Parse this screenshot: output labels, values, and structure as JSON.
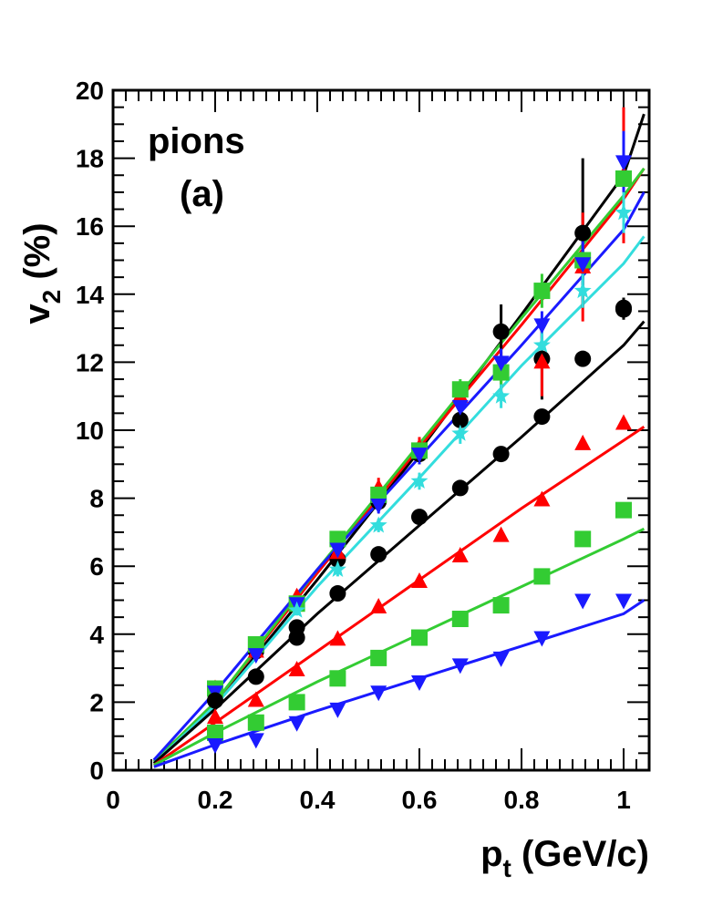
{
  "chart_data": {
    "type": "scatter",
    "title": "",
    "annotation": {
      "line1": "pions",
      "line2": "(a)"
    },
    "xlabel": {
      "main": "p",
      "sub": "t",
      "rest": " (GeV/c)"
    },
    "ylabel": {
      "main": "v",
      "sub": "2",
      "rest": " (%)"
    },
    "xlim": [
      0,
      1.05
    ],
    "ylim": [
      0,
      20
    ],
    "x_ticks": [
      0,
      0.2,
      0.4,
      0.6,
      0.8,
      1
    ],
    "x_tick_labels": [
      "0",
      "0.2",
      "0.4",
      "0.6",
      "0.8",
      "1"
    ],
    "y_ticks": [
      0,
      2,
      4,
      6,
      8,
      10,
      12,
      14,
      16,
      18,
      20
    ],
    "y_tick_labels": [
      "0",
      "2",
      "4",
      "6",
      "8",
      "10",
      "12",
      "14",
      "16",
      "18",
      "20"
    ],
    "grid": false,
    "series": [
      {
        "marker": "circle",
        "color": "#000000",
        "x": [
          0.2,
          0.28,
          0.36,
          0.44,
          0.52,
          0.6,
          0.68,
          0.76,
          0.84,
          0.92,
          1.0
        ],
        "y": [
          2.4,
          3.5,
          4.2,
          6.2,
          7.9,
          9.3,
          10.3,
          12.9,
          12.1,
          15.8,
          13.6
        ],
        "err": [
          0.2,
          0.15,
          0.2,
          0.2,
          0.25,
          0.3,
          0.3,
          0.8,
          1.2,
          2.2,
          0.3
        ],
        "fit": [
          [
            0.08,
            0.3
          ],
          [
            0.2,
            1.9
          ],
          [
            0.4,
            5.6
          ],
          [
            0.6,
            9.4
          ],
          [
            0.8,
            13.4
          ],
          [
            1.0,
            17.5
          ],
          [
            1.04,
            19.3
          ]
        ]
      },
      {
        "marker": "triangle-up",
        "color": "#ff0000",
        "x": [
          0.2,
          0.28,
          0.36,
          0.44,
          0.52,
          0.6,
          0.68,
          0.76,
          0.84,
          0.92,
          1.0
        ],
        "y": [
          2.4,
          3.5,
          5.1,
          6.4,
          8.3,
          9.5,
          11.0,
          11.7,
          12.0,
          14.8,
          17.5
        ],
        "err": [
          0.2,
          0.2,
          0.2,
          0.3,
          0.3,
          0.3,
          0.4,
          0.6,
          1.0,
          1.6,
          2.0
        ],
        "fit": [
          [
            0.08,
            0.25
          ],
          [
            0.2,
            2.0
          ],
          [
            0.4,
            5.8
          ],
          [
            0.6,
            9.5
          ],
          [
            0.8,
            13.1
          ],
          [
            1.0,
            16.8
          ],
          [
            1.04,
            17.7
          ]
        ]
      },
      {
        "marker": "square",
        "color": "#33cc33",
        "x": [
          0.2,
          0.28,
          0.36,
          0.44,
          0.52,
          0.6,
          0.68,
          0.76,
          0.84,
          0.92,
          1.0
        ],
        "y": [
          2.4,
          3.7,
          4.9,
          6.8,
          8.1,
          9.4,
          11.2,
          11.7,
          14.1,
          15.0,
          17.4
        ],
        "err": [
          0.15,
          0.15,
          0.2,
          0.2,
          0.25,
          0.3,
          0.3,
          0.5,
          0.5,
          0.8,
          1.2
        ],
        "fit": [
          [
            0.08,
            0.25
          ],
          [
            0.2,
            2.0
          ],
          [
            0.4,
            5.9
          ],
          [
            0.6,
            9.6
          ],
          [
            0.8,
            13.3
          ],
          [
            1.0,
            16.9
          ],
          [
            1.04,
            17.7
          ]
        ]
      },
      {
        "marker": "triangle-down",
        "color": "#1a1aff",
        "x": [
          0.2,
          0.28,
          0.36,
          0.44,
          0.52,
          0.6,
          0.68,
          0.76,
          0.84,
          0.92,
          1.0
        ],
        "y": [
          2.3,
          3.4,
          4.9,
          6.5,
          7.8,
          9.3,
          10.7,
          12.0,
          13.1,
          14.9,
          17.9
        ],
        "err": [
          0.15,
          0.15,
          0.2,
          0.2,
          0.25,
          0.3,
          0.3,
          0.4,
          0.4,
          0.7,
          0.9
        ],
        "fit": [
          [
            0.08,
            0.3
          ],
          [
            0.2,
            2.3
          ],
          [
            0.4,
            5.9
          ],
          [
            0.6,
            9.2
          ],
          [
            0.8,
            12.5
          ],
          [
            1.0,
            15.9
          ],
          [
            1.04,
            17.0
          ]
        ]
      },
      {
        "marker": "star",
        "color": "#33dddd",
        "x": [
          0.36,
          0.44,
          0.52,
          0.6,
          0.68,
          0.76,
          0.84,
          0.92,
          1.0
        ],
        "y": [
          4.7,
          5.9,
          7.2,
          8.5,
          9.9,
          11.0,
          12.5,
          14.1,
          16.4
        ],
        "err": [
          0.15,
          0.2,
          0.2,
          0.25,
          0.3,
          0.35,
          0.4,
          0.5,
          0.6
        ],
        "fit": [
          [
            0.08,
            0.2
          ],
          [
            0.2,
            1.9
          ],
          [
            0.4,
            5.4
          ],
          [
            0.6,
            8.6
          ],
          [
            0.8,
            11.9
          ],
          [
            1.0,
            14.9
          ],
          [
            1.04,
            15.7
          ]
        ]
      },
      {
        "marker": "circle",
        "color": "#000000",
        "x": [
          0.2,
          0.28,
          0.36,
          0.44,
          0.52,
          0.6,
          0.68,
          0.76,
          0.84,
          0.92,
          1.0
        ],
        "y": [
          2.05,
          2.75,
          3.9,
          5.2,
          6.35,
          7.45,
          8.3,
          9.3,
          10.4,
          12.1,
          13.55
        ],
        "err": [
          0.1,
          0.1,
          0.1,
          0.1,
          0.1,
          0.1,
          0.1,
          0.1,
          0.15,
          0.15,
          0.3
        ],
        "fit": [
          [
            0.08,
            0.2
          ],
          [
            0.2,
            1.8
          ],
          [
            0.4,
            4.6
          ],
          [
            0.6,
            7.2
          ],
          [
            0.8,
            9.8
          ],
          [
            1.0,
            12.5
          ],
          [
            1.04,
            13.2
          ]
        ]
      },
      {
        "marker": "triangle-up",
        "color": "#ff0000",
        "x": [
          0.2,
          0.28,
          0.36,
          0.44,
          0.52,
          0.6,
          0.68,
          0.76,
          0.84,
          0.92,
          1.0
        ],
        "y": [
          1.55,
          2.05,
          2.95,
          3.85,
          4.8,
          5.55,
          6.3,
          6.9,
          7.95,
          9.6,
          10.2
        ],
        "err": [
          0.05,
          0.05,
          0.05,
          0.05,
          0.05,
          0.05,
          0.05,
          0.05,
          0.05,
          0.1,
          0.1
        ],
        "fit": [
          [
            0.08,
            0.15
          ],
          [
            0.2,
            1.4
          ],
          [
            0.4,
            3.5
          ],
          [
            0.6,
            5.6
          ],
          [
            0.8,
            7.7
          ],
          [
            1.0,
            9.7
          ],
          [
            1.04,
            10.1
          ]
        ]
      },
      {
        "marker": "square",
        "color": "#33cc33",
        "x": [
          0.2,
          0.28,
          0.36,
          0.44,
          0.52,
          0.6,
          0.68,
          0.76,
          0.84,
          0.92,
          1.0
        ],
        "y": [
          1.1,
          1.4,
          2.0,
          2.7,
          3.3,
          3.9,
          4.45,
          4.85,
          5.7,
          6.8,
          7.65
        ],
        "err": [
          0.05,
          0.05,
          0.05,
          0.05,
          0.05,
          0.05,
          0.05,
          0.05,
          0.05,
          0.1,
          0.15
        ],
        "fit": [
          [
            0.08,
            0.15
          ],
          [
            0.2,
            1.1
          ],
          [
            0.4,
            2.6
          ],
          [
            0.6,
            4.0
          ],
          [
            0.8,
            5.4
          ],
          [
            1.0,
            6.8
          ],
          [
            1.04,
            7.1
          ]
        ]
      },
      {
        "marker": "triangle-down",
        "color": "#1a1aff",
        "x": [
          0.2,
          0.28,
          0.36,
          0.44,
          0.52,
          0.6,
          0.68,
          0.76,
          0.84,
          0.92,
          1.0
        ],
        "y": [
          0.75,
          0.9,
          1.4,
          1.8,
          2.3,
          2.6,
          3.1,
          3.3,
          3.9,
          5.0,
          5.0
        ],
        "err": [
          0.05,
          0.05,
          0.05,
          0.05,
          0.05,
          0.05,
          0.05,
          0.05,
          0.05,
          0.1,
          0.15
        ],
        "fit": [
          [
            0.08,
            0.1
          ],
          [
            0.2,
            0.75
          ],
          [
            0.4,
            1.75
          ],
          [
            0.6,
            2.7
          ],
          [
            0.8,
            3.65
          ],
          [
            1.0,
            4.6
          ],
          [
            1.04,
            5.0
          ]
        ]
      }
    ]
  }
}
